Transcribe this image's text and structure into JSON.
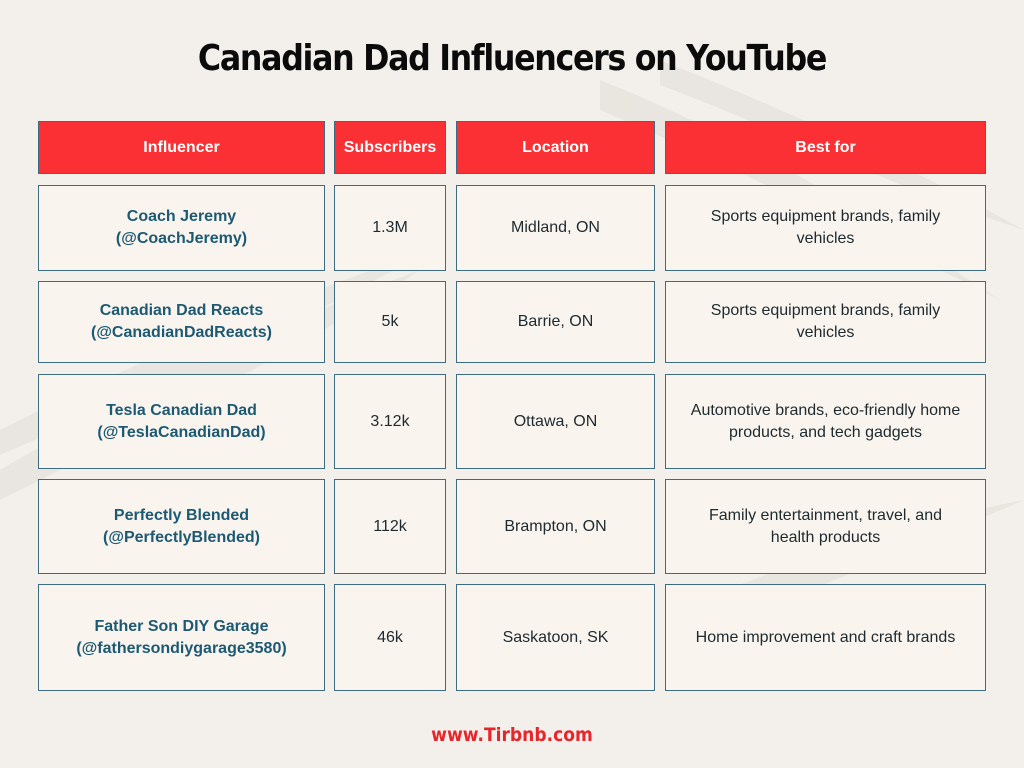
{
  "title": "Canadian Dad Influencers on YouTube",
  "colors": {
    "header_bg": "#fa3034",
    "cell_bg": "#faf4ee",
    "border": "#3d6b80",
    "name_text": "#1c5a73",
    "footer_text": "#e8252a",
    "page_bg": "#f3f0ec"
  },
  "table": {
    "headers": [
      "Influencer",
      "Subscribers",
      "Location",
      "Best for"
    ],
    "rows": [
      {
        "name": "Coach Jeremy",
        "handle": "(@CoachJeremy)",
        "subscribers": "1.3M",
        "location": "Midland, ON",
        "best_for": "Sports equipment brands, family vehicles"
      },
      {
        "name": "Canadian Dad Reacts",
        "handle": "(@CanadianDadReacts)",
        "subscribers": "5k",
        "location": "Barrie, ON",
        "best_for": "Sports equipment brands, family vehicles"
      },
      {
        "name": "Tesla Canadian Dad",
        "handle": "(@TeslaCanadianDad)",
        "subscribers": "3.12k",
        "location": "Ottawa, ON",
        "best_for": "Automotive brands, eco-friendly home products, and tech gadgets"
      },
      {
        "name": "Perfectly Blended",
        "handle": "(@PerfectlyBlended)",
        "subscribers": "112k",
        "location": "Brampton, ON",
        "best_for": "Family entertainment, travel, and health products"
      },
      {
        "name": "Father Son DIY Garage",
        "handle": "(@fathersondiygarage3580)",
        "subscribers": "46k",
        "location": "Saskatoon, SK",
        "best_for": "Home improvement and craft brands"
      }
    ]
  },
  "footer": "www.Tirbnb.com"
}
